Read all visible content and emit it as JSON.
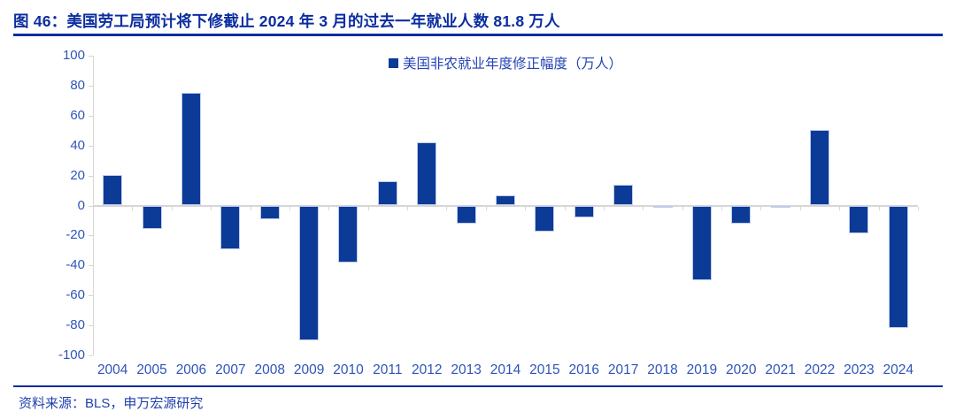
{
  "header": {
    "title": "图 46：美国劳工局预计将下修截止 2024 年 3 月的过去一年就业人数 81.8 万人"
  },
  "legend": {
    "label": "美国非农就业年度修正幅度（万人）"
  },
  "footer": {
    "source": "资料来源：BLS，申万宏源研究"
  },
  "colors": {
    "navy_rule_and_title": "#0B2DA0",
    "bar_fill": "#0B3A97",
    "bar_border": "#BFCCEC",
    "axis_text": "#2F55BC",
    "legend_text": "#2443B5",
    "footer_text": "#1F3FAE",
    "axis_line": "#D6D6D6"
  },
  "chart_data": {
    "type": "bar",
    "title": "图 46：美国劳工局预计将下修截止 2024 年 3 月的过去一年就业人数 81.8 万人",
    "legend_entries": [
      "美国非农就业年度修正幅度（万人）"
    ],
    "legend_position": "top-center",
    "categories": [
      "2004",
      "2005",
      "2006",
      "2007",
      "2008",
      "2009",
      "2010",
      "2011",
      "2012",
      "2013",
      "2014",
      "2015",
      "2016",
      "2017",
      "2018",
      "2019",
      "2020",
      "2021",
      "2022",
      "2023",
      "2024"
    ],
    "values": [
      20.3,
      -15.8,
      75.2,
      -29.3,
      -8.9,
      -90.2,
      -37.8,
      16.2,
      42.4,
      -11.9,
      6.7,
      -17.2,
      -8.1,
      13.8,
      -1.6,
      -50.1,
      -12.1,
      -0.2,
      50.6,
      -18.7,
      -81.8
    ],
    "xlabel": "",
    "ylabel": "",
    "ylim": [
      -100,
      100
    ],
    "ytick_step": 20,
    "yticks": [
      100,
      80,
      60,
      40,
      20,
      0,
      -20,
      -40,
      -60,
      -80,
      -100
    ],
    "grid": false,
    "unit": "万人"
  }
}
